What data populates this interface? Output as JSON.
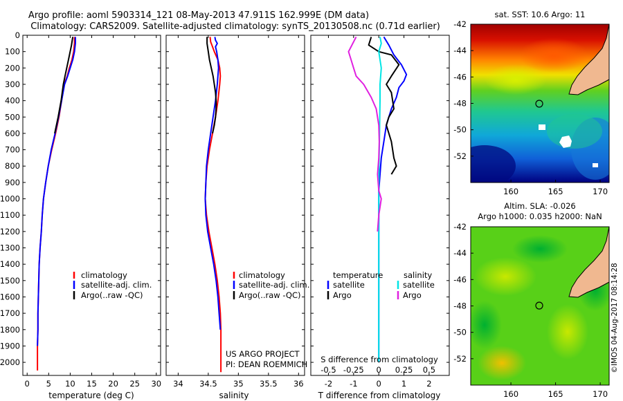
{
  "header": {
    "line1": "Argo profile: aoml 5903314_121 08-May-2013 47.911S 162.999E (DM data)",
    "line2": "Climatology: CARS2009. Satellite-adjusted climatology: synTS_20130508.nc (0.71d earlier)"
  },
  "credits": {
    "project": "US ARGO PROJECT",
    "pi": "PI: DEAN ROEMMICH"
  },
  "stamp": "©IMOS 04-Aug-2017 08:14:28",
  "colors": {
    "climatology": "#ff0000",
    "satellite": "#0000ff",
    "argo": "#000000",
    "salinity_satellite": "#00e5e5",
    "salinity_argo": "#e020e0",
    "land": "#f0b890"
  },
  "chart_data": [
    {
      "type": "line",
      "panel": "temperature",
      "xlabel": "temperature (deg C)",
      "xlim": [
        -1,
        31
      ],
      "xticks": [
        0,
        5,
        10,
        15,
        20,
        25,
        30
      ],
      "ylim": [
        0,
        2080
      ],
      "yticks": [
        0,
        100,
        200,
        300,
        400,
        500,
        600,
        700,
        800,
        900,
        1000,
        1100,
        1200,
        1300,
        1400,
        1500,
        1600,
        1700,
        1800,
        1900,
        2000
      ],
      "legend": [
        "climatology",
        "satellite-adj. clim.",
        "Argo(..raw -QC)"
      ],
      "series": [
        {
          "name": "climatology",
          "color": "#ff0000",
          "x": [
            11.0,
            11.0,
            10.8,
            10.4,
            9.8,
            9.3,
            8.6,
            8.0,
            7.4,
            6.6,
            5.7,
            4.9,
            4.3,
            3.8,
            3.5,
            3.3,
            3.0,
            2.8,
            2.7,
            2.6,
            2.5,
            2.5,
            2.4,
            2.4
          ],
          "y": [
            10,
            50,
            100,
            150,
            200,
            250,
            300,
            400,
            500,
            600,
            700,
            800,
            900,
            1000,
            1100,
            1200,
            1300,
            1400,
            1500,
            1600,
            1700,
            1800,
            1900,
            2050
          ]
        },
        {
          "name": "satellite-adj. clim.",
          "color": "#0000ff",
          "x": [
            11.2,
            11.2,
            11.0,
            10.6,
            10.0,
            9.4,
            8.7,
            8.0,
            7.3,
            6.5,
            5.6,
            4.9,
            4.3,
            3.8,
            3.5,
            3.3,
            3.0,
            2.8,
            2.7,
            2.6,
            2.5,
            2.5,
            2.4
          ],
          "y": [
            10,
            50,
            100,
            150,
            200,
            250,
            300,
            400,
            500,
            600,
            700,
            800,
            900,
            1000,
            1100,
            1200,
            1300,
            1400,
            1500,
            1600,
            1700,
            1800,
            1900
          ]
        },
        {
          "name": "Argo(..raw -QC)",
          "color": "#000000",
          "x": [
            10.6,
            10.3,
            9.6,
            9.2,
            8.8,
            8.4,
            7.9,
            7.2,
            6.4
          ],
          "y": [
            10,
            60,
            150,
            200,
            250,
            300,
            400,
            500,
            600
          ]
        }
      ]
    },
    {
      "type": "line",
      "panel": "salinity",
      "xlabel": "salinity",
      "xlim": [
        33.8,
        36.1
      ],
      "xticks": [
        34,
        34.5,
        35,
        35.5,
        36
      ],
      "xticklabels": [
        "34",
        "34.5",
        "35",
        "35.5",
        "36"
      ],
      "ylim": [
        0,
        2080
      ],
      "legend": [
        "climatology",
        "satellite-adj. clim.",
        "Argo(..raw -QC)"
      ],
      "series": [
        {
          "name": "climatology",
          "color": "#ff0000",
          "x": [
            34.53,
            34.54,
            34.56,
            34.6,
            34.66,
            34.69,
            34.7,
            34.69,
            34.66,
            34.62,
            34.57,
            34.52,
            34.48,
            34.46,
            34.45,
            34.47,
            34.51,
            34.56,
            34.61,
            34.65,
            34.68,
            34.7,
            34.71,
            34.71
          ],
          "y": [
            10,
            40,
            60,
            100,
            150,
            200,
            250,
            300,
            400,
            500,
            600,
            700,
            800,
            900,
            1000,
            1100,
            1200,
            1300,
            1400,
            1500,
            1600,
            1700,
            1800,
            2060
          ]
        },
        {
          "name": "satellite-adj. clim.",
          "color": "#0000ff",
          "x": [
            34.61,
            34.62,
            34.65,
            34.62,
            34.64,
            34.66,
            34.67,
            34.65,
            34.62,
            34.58,
            34.54,
            34.5,
            34.47,
            34.46,
            34.45,
            34.46,
            34.49,
            34.54,
            34.59,
            34.63,
            34.66,
            34.68,
            34.7
          ],
          "y": [
            10,
            30,
            50,
            70,
            100,
            150,
            200,
            300,
            400,
            500,
            600,
            700,
            800,
            900,
            1000,
            1100,
            1200,
            1300,
            1400,
            1500,
            1600,
            1700,
            1800
          ]
        },
        {
          "name": "Argo(..raw -QC)",
          "color": "#000000",
          "x": [
            34.48,
            34.48,
            34.5,
            34.52,
            34.55,
            34.58,
            34.6,
            34.62,
            34.63,
            34.63,
            34.62,
            34.6,
            34.57
          ],
          "y": [
            10,
            50,
            100,
            150,
            200,
            250,
            300,
            350,
            400,
            450,
            500,
            550,
            600
          ]
        }
      ]
    },
    {
      "type": "line",
      "panel": "difference",
      "xlabel": "T difference from climatology",
      "xlabel_top": "S difference from climatology",
      "xlim": [
        -2.7,
        2.8
      ],
      "xticks": [
        -2,
        -1,
        0,
        1,
        2
      ],
      "xticks_top": [
        -0.5,
        -0.25,
        0,
        0.25,
        0.5
      ],
      "xticklabels_top": [
        "-0.5",
        "-0.25",
        "0",
        "0.25",
        "0.5"
      ],
      "ylim": [
        0,
        2080
      ],
      "legend_title_temperature": "temperature",
      "legend_title_salinity": "salinity",
      "legend": [
        "satellite",
        "Argo",
        "satellite",
        "Argo"
      ],
      "series": [
        {
          "name": "satellite",
          "quantity": "temperature",
          "color": "#0000ff",
          "x": [
            0.2,
            0.4,
            0.6,
            0.9,
            1.1,
            1.0,
            0.8,
            0.7,
            0.5,
            0.3,
            0.2,
            0.1,
            0.05,
            0.0,
            0.0,
            0.0,
            0.0,
            0.0,
            0.0,
            0.0,
            0.0,
            0.0
          ],
          "y": [
            10,
            60,
            120,
            180,
            240,
            280,
            320,
            380,
            450,
            550,
            650,
            750,
            850,
            950,
            1050,
            1150,
            1250,
            1350,
            1450,
            1600,
            1800,
            2000
          ]
        },
        {
          "name": "Argo",
          "quantity": "temperature",
          "color": "#000000",
          "x": [
            -0.3,
            -0.4,
            0.0,
            0.5,
            0.8,
            0.5,
            0.3,
            0.5,
            0.6,
            0.4,
            0.3,
            0.5,
            0.6,
            0.7,
            0.5
          ],
          "y": [
            10,
            60,
            100,
            120,
            180,
            250,
            300,
            350,
            450,
            500,
            550,
            650,
            750,
            800,
            850
          ]
        },
        {
          "name": "satellite",
          "quantity": "salinity",
          "color": "#00e5e5",
          "x": [
            0.05,
            0.1,
            0.0,
            0.05,
            0.1,
            0.05,
            0.05,
            0.04,
            0.03,
            0.02,
            0.01,
            0.0,
            0.0,
            0.0,
            0.0,
            0.0,
            0.0
          ],
          "y": [
            10,
            50,
            100,
            150,
            200,
            300,
            400,
            500,
            600,
            700,
            800,
            900,
            1100,
            1300,
            1500,
            1800,
            2000
          ]
        },
        {
          "name": "Argo",
          "quantity": "salinity",
          "color": "#e020e0",
          "x": [
            -0.9,
            -1.2,
            -1.1,
            -1.0,
            -0.9,
            -0.6,
            -0.3,
            -0.1,
            0.0,
            0.02,
            0.0,
            -0.05,
            0.0,
            0.1,
            0.0,
            -0.05
          ],
          "y": [
            10,
            100,
            150,
            200,
            250,
            300,
            380,
            450,
            550,
            650,
            750,
            850,
            950,
            1000,
            1100,
            1200
          ]
        }
      ]
    },
    {
      "type": "heatmap",
      "panel": "sst-map",
      "title": "sat. SST: 10.6 Argo: 11",
      "xlim": [
        155.5,
        171
      ],
      "ylim": [
        -54,
        -42
      ],
      "xticks": [
        160,
        165,
        170
      ],
      "yticks": [
        -42,
        -44,
        -46,
        -48,
        -50,
        -52
      ],
      "float_position": {
        "lon": 162.999,
        "lat": -47.911
      }
    },
    {
      "type": "heatmap",
      "panel": "altimetry-map",
      "title": "Altim. SLA: -0.026",
      "subtitle": "Argo h1000: 0.035 h2000: NaN",
      "xlim": [
        155.5,
        171
      ],
      "ylim": [
        -54,
        -42
      ],
      "xticks": [
        160,
        165,
        170
      ],
      "yticks": [
        -42,
        -44,
        -46,
        -48,
        -50,
        -52
      ],
      "float_position": {
        "lon": 162.999,
        "lat": -47.911
      }
    }
  ]
}
